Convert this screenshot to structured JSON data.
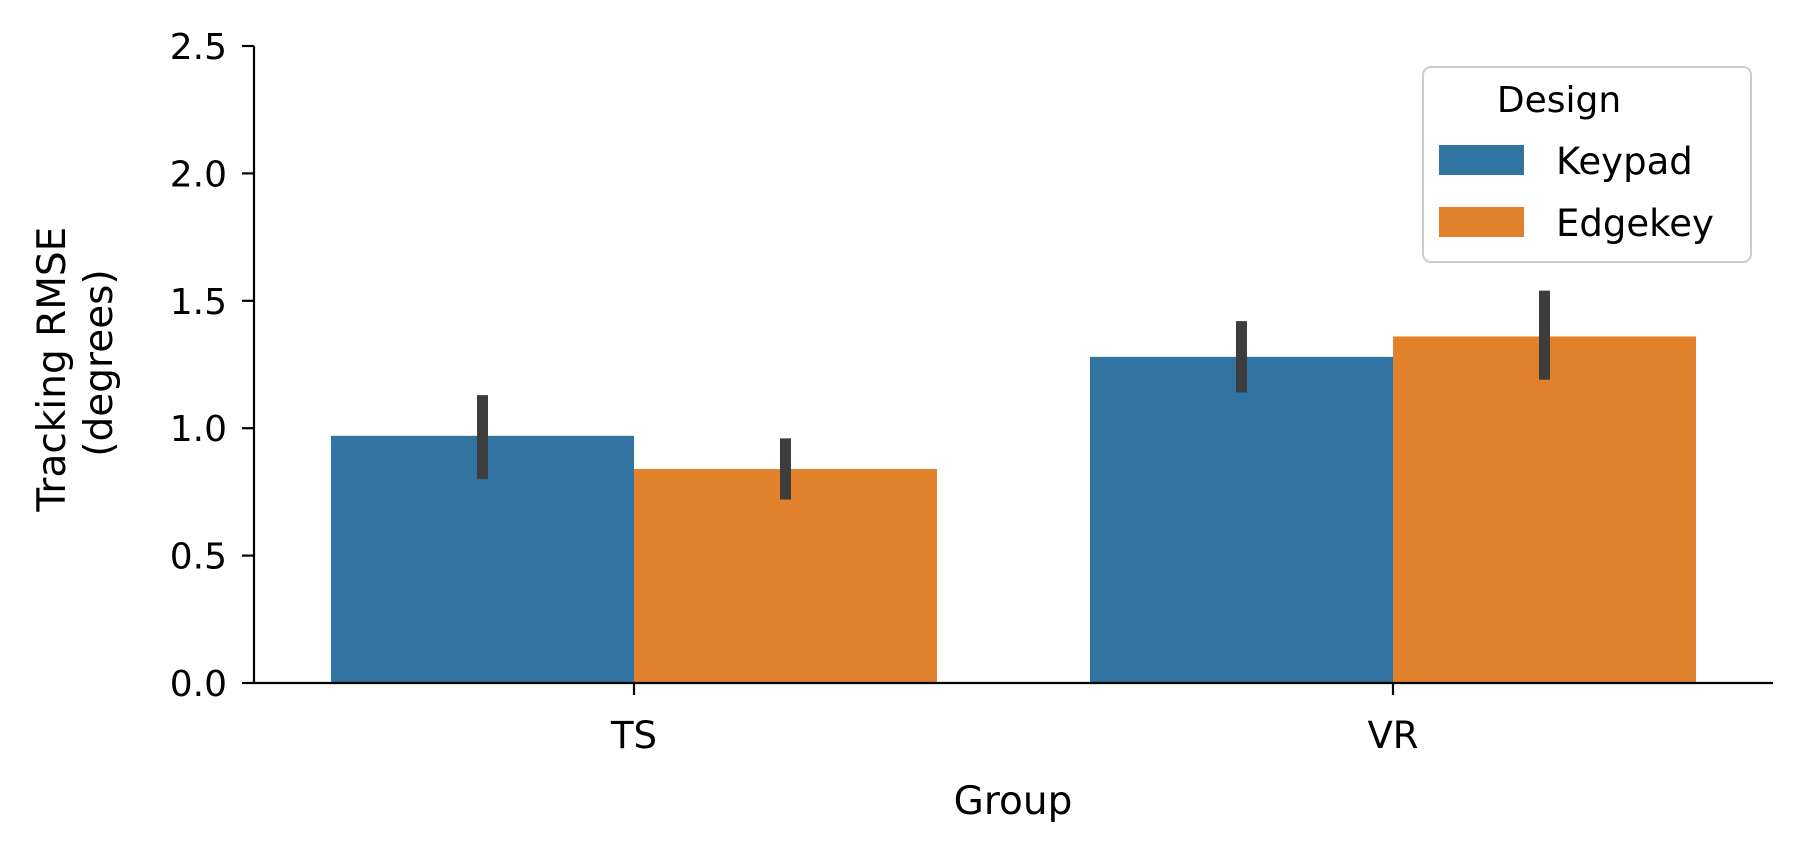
{
  "chart_data": {
    "type": "bar",
    "title": "",
    "xlabel": "Group",
    "ylabel_lines": [
      "Tracking RMSE",
      "(degrees)"
    ],
    "categories": [
      "TS",
      "VR"
    ],
    "ylim": [
      0,
      2.5
    ],
    "yticks": [
      0.0,
      0.5,
      1.0,
      1.5,
      2.0,
      2.5
    ],
    "ytick_labels": [
      "0.0",
      "0.5",
      "1.0",
      "1.5",
      "2.0",
      "2.5"
    ],
    "grid": false,
    "legend": {
      "title": "Design",
      "placement": "top-right"
    },
    "series": [
      {
        "name": "Keypad",
        "color": "#3274a1",
        "values": [
          0.97,
          1.28
        ],
        "ci_low": [
          0.8,
          1.14
        ],
        "ci_high": [
          1.13,
          1.42
        ]
      },
      {
        "name": "Edgekey",
        "color": "#e1812c",
        "values": [
          0.84,
          1.36
        ],
        "ci_low": [
          0.72,
          1.19
        ],
        "ci_high": [
          0.96,
          1.54
        ]
      }
    ],
    "errorbar_color": "#3d3d3d"
  }
}
